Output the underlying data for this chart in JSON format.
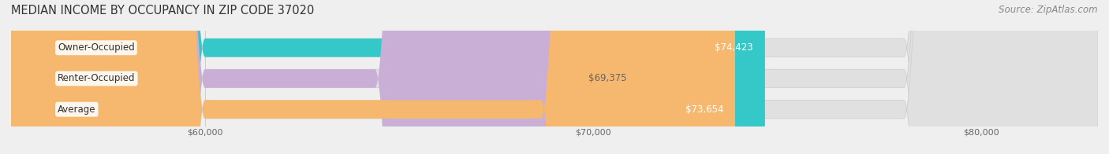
{
  "title": "MEDIAN INCOME BY OCCUPANCY IN ZIP CODE 37020",
  "source": "Source: ZipAtlas.com",
  "categories": [
    "Owner-Occupied",
    "Renter-Occupied",
    "Average"
  ],
  "values": [
    74423,
    69375,
    73654
  ],
  "bar_colors": [
    "#35c8c8",
    "#c9aed6",
    "#f5b86e"
  ],
  "value_labels": [
    "$74,423",
    "$69,375",
    "$73,654"
  ],
  "value_label_inside": [
    true,
    false,
    true
  ],
  "value_label_colors_inside": [
    "#ffffff",
    "#666666",
    "#ffffff"
  ],
  "xlim": [
    55000,
    83000
  ],
  "xticks": [
    60000,
    70000,
    80000
  ],
  "xticklabels": [
    "$60,000",
    "$70,000",
    "$80,000"
  ],
  "bg_color": "#efefef",
  "bar_bg_color": "#e0e0e0",
  "title_fontsize": 10.5,
  "source_fontsize": 8.5,
  "label_fontsize": 8.5,
  "value_fontsize": 8.5
}
